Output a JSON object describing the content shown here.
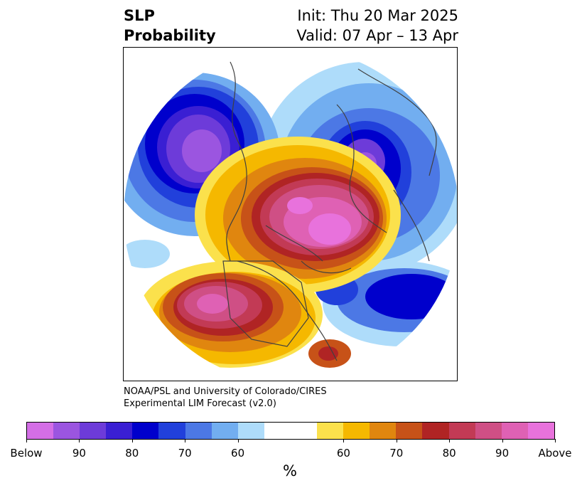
{
  "title": {
    "left_line1": "SLP",
    "left_line2": "Probability",
    "right_line1": "Init: Thu 20 Mar 2025",
    "right_line2": "Valid: 07 Apr – 13 Apr"
  },
  "credit": {
    "line1": "NOAA/PSL and University of Colorado/CIRES",
    "line2": "Experimental LIM Forecast (v2.0)"
  },
  "colorbar": {
    "colors": [
      "#d46ee6",
      "#9b55e0",
      "#6d3bd9",
      "#3a1fd3",
      "#0000cc",
      "#2140db",
      "#4c78e5",
      "#72aef0",
      "#aedcfa",
      "#ffffff",
      "#ffffff",
      "#fbe14c",
      "#f5b800",
      "#e0860f",
      "#c75218",
      "#b02424",
      "#c23a55",
      "#cf4f85",
      "#df61b4",
      "#e872dc"
    ],
    "labels": [
      "Below",
      "90",
      "80",
      "70",
      "60",
      "60",
      "70",
      "80",
      "90",
      "Above"
    ],
    "unit": "%"
  },
  "map": {
    "projection": "north-polar-stereographic",
    "description_colors": {
      "below_strong": "#0000cc",
      "above_strong": "#c23a55",
      "coast": "#404040"
    }
  }
}
